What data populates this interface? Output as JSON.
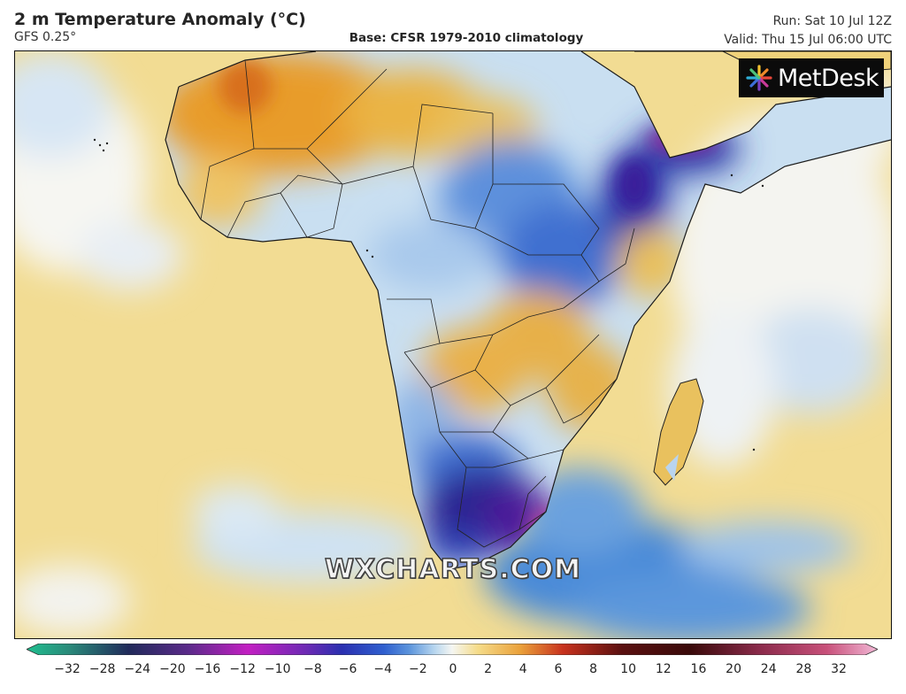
{
  "header": {
    "title": "2 m Temperature Anomaly (°C)",
    "model": "GFS 0.25°",
    "base": "Base: CFSR 1979-2010 climatology",
    "run": "Run: Sat 10 Jul 12Z",
    "valid": "Valid: Thu 15 Jul 06:00 UTC"
  },
  "logo": {
    "text": "MetDesk"
  },
  "watermark": {
    "text": "WXCHARTS.COM"
  },
  "colorbar": {
    "unit": "°C",
    "ticks": [
      "−32",
      "−28",
      "−24",
      "−20",
      "−16",
      "−12",
      "−10",
      "−8",
      "−6",
      "−4",
      "−2",
      "0",
      "2",
      "4",
      "6",
      "8",
      "10",
      "12",
      "16",
      "20",
      "24",
      "28",
      "32"
    ],
    "colors": {
      "extreme_cold": "#1fbf8f",
      "very_cold": "#202a5a",
      "magenta_cold": "#c21fc2",
      "deep_blue": "#2a2fb0",
      "mid_blue": "#3f7ad8",
      "light_blue": "#b9d7ef",
      "neutral": "#f5f6f2",
      "light_yellow": "#f5dc8a",
      "orange": "#eaa13a",
      "red": "#c8321e",
      "dark_red": "#5a1010",
      "pink": "#e27bb7"
    }
  },
  "map": {
    "ocean_color": "#f2dc93",
    "land_colors": {
      "cold": "#3e6ccf",
      "very_cold": "#27208c",
      "warm": "#eab444",
      "hot": "#e08c24",
      "mild": "#c9dff1"
    }
  }
}
